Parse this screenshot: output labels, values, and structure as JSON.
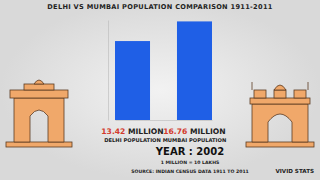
{
  "chart_data": {
    "type": "bar",
    "title": "DELHI VS MUMBAI POPULATION COMPARISON 1911-2011",
    "categories": [
      "DELHI POPULATION",
      "MUMBAI POPULATION"
    ],
    "values": [
      13.42,
      16.76
    ],
    "value_labels": [
      "13.42 MILLION",
      "16.76 MILLION"
    ],
    "data_labels": true,
    "color": "#1f5fe6",
    "ylim": [
      0,
      17
    ],
    "yticks": [],
    "tick_labels": "x",
    "grid": false,
    "annotations": [
      "YEAR : 2002",
      "1 MILLION = 10 LAKHS",
      "SOURCE: INDIAN CENSUS DATA 1911 TO 2011",
      "VIVID STATS"
    ]
  }
}
